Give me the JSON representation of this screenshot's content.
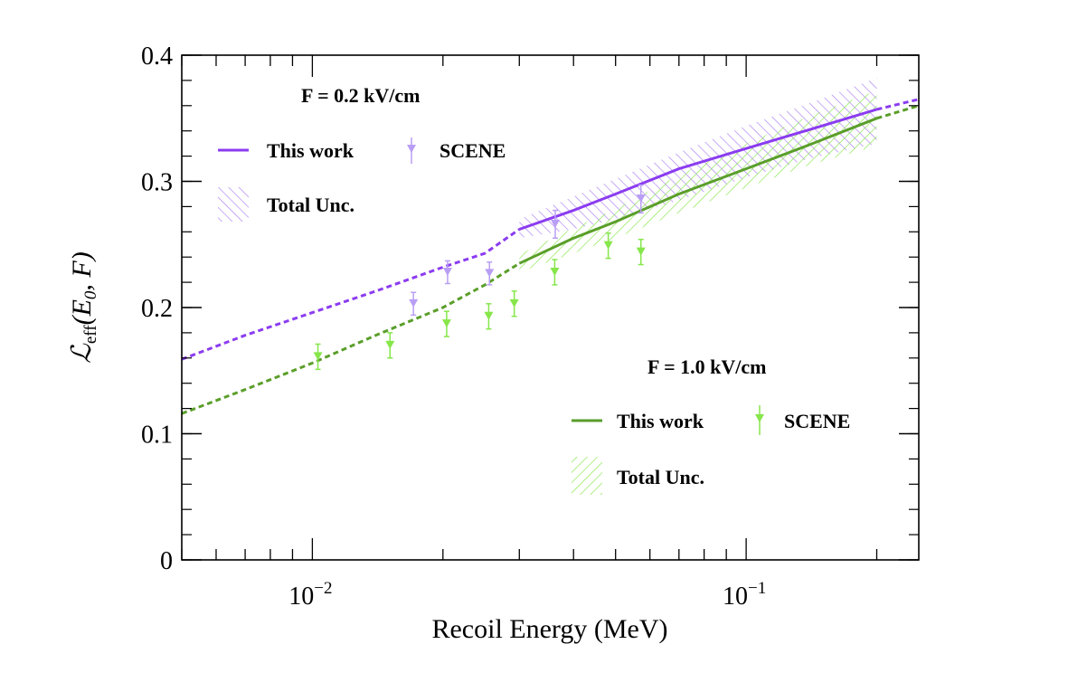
{
  "chart_data": {
    "type": "line",
    "xlabel": "Recoil Energy (MeV)",
    "ylabel": "ℒeff(E0, F)",
    "ylabel_parts": {
      "script_L": "ℒ",
      "sub": "eff",
      "args": "(E",
      "sub0": "0",
      "rest": ", F)"
    },
    "x_scale": "log",
    "xlim": [
      0.005,
      0.25
    ],
    "ylim": [
      0,
      0.4
    ],
    "x_ticks": [
      {
        "value": 0.01,
        "base": "10",
        "exp": "−2"
      },
      {
        "value": 0.1,
        "base": "10",
        "exp": "−1"
      }
    ],
    "y_ticks": [
      {
        "value": 0,
        "label": "0"
      },
      {
        "value": 0.1,
        "label": "0.1"
      },
      {
        "value": 0.2,
        "label": "0.2"
      },
      {
        "value": 0.3,
        "label": "0.3"
      },
      {
        "value": 0.4,
        "label": "0.4"
      }
    ],
    "legends": [
      {
        "title": "F = 0.2 kV/cm",
        "color": "#8b3cf0",
        "line_label": "This work",
        "marker_label": "SCENE",
        "band_label": "Total Unc."
      },
      {
        "title": "F = 1.0 kV/cm",
        "color": "#5a9e2a",
        "line_label": "This work",
        "marker_label": "SCENE",
        "band_label": "Total Unc."
      }
    ],
    "series": [
      {
        "field": "0.2 kV/cm",
        "model_color": "#8b3cf0",
        "scene_color": "#b99ef5",
        "band_color": "#a97ff2",
        "model_extrapolated": [
          [
            0.005,
            0.159
          ],
          [
            0.007,
            0.178
          ],
          [
            0.01,
            0.196
          ],
          [
            0.014,
            0.213
          ],
          [
            0.02,
            0.232
          ],
          [
            0.025,
            0.243
          ],
          [
            0.03,
            0.262
          ]
        ],
        "model_solid": [
          [
            0.03,
            0.262
          ],
          [
            0.04,
            0.277
          ],
          [
            0.05,
            0.29
          ],
          [
            0.07,
            0.31
          ],
          [
            0.1,
            0.326
          ],
          [
            0.14,
            0.341
          ],
          [
            0.2,
            0.357
          ]
        ],
        "model_tail": [
          [
            0.2,
            0.357
          ],
          [
            0.25,
            0.365
          ]
        ],
        "band": {
          "x": [
            0.03,
            0.04,
            0.05,
            0.07,
            0.1,
            0.14,
            0.2
          ],
          "lo": [
            0.255,
            0.262,
            0.27,
            0.285,
            0.303,
            0.318,
            0.33
          ],
          "hi": [
            0.27,
            0.288,
            0.302,
            0.323,
            0.344,
            0.362,
            0.382
          ]
        },
        "scene_points": [
          {
            "x": 0.0171,
            "y": 0.203,
            "err": 0.009
          },
          {
            "x": 0.0205,
            "y": 0.228,
            "err": 0.009
          },
          {
            "x": 0.0256,
            "y": 0.227,
            "err": 0.009
          },
          {
            "x": 0.0363,
            "y": 0.266,
            "err": 0.011
          },
          {
            "x": 0.0572,
            "y": 0.286,
            "err": 0.011
          }
        ]
      },
      {
        "field": "1.0 kV/cm",
        "model_color": "#5a9e2a",
        "scene_color": "#86e64a",
        "band_color": "#86e64a",
        "model_extrapolated": [
          [
            0.005,
            0.116
          ],
          [
            0.007,
            0.135
          ],
          [
            0.01,
            0.156
          ],
          [
            0.014,
            0.178
          ],
          [
            0.02,
            0.2
          ],
          [
            0.025,
            0.218
          ],
          [
            0.03,
            0.235
          ]
        ],
        "model_solid": [
          [
            0.03,
            0.235
          ],
          [
            0.04,
            0.255
          ],
          [
            0.05,
            0.268
          ],
          [
            0.07,
            0.29
          ],
          [
            0.1,
            0.31
          ],
          [
            0.14,
            0.329
          ],
          [
            0.2,
            0.35
          ]
        ],
        "model_tail": [
          [
            0.2,
            0.35
          ],
          [
            0.25,
            0.36
          ]
        ],
        "band": {
          "x": [
            0.03,
            0.04,
            0.05,
            0.07,
            0.1,
            0.14,
            0.2
          ],
          "lo": [
            0.228,
            0.243,
            0.255,
            0.275,
            0.295,
            0.313,
            0.328
          ],
          "hi": [
            0.242,
            0.263,
            0.278,
            0.305,
            0.33,
            0.352,
            0.372
          ]
        },
        "scene_points": [
          {
            "x": 0.0103,
            "y": 0.161,
            "err": 0.01
          },
          {
            "x": 0.0151,
            "y": 0.17,
            "err": 0.01
          },
          {
            "x": 0.0204,
            "y": 0.187,
            "err": 0.01
          },
          {
            "x": 0.0255,
            "y": 0.193,
            "err": 0.01
          },
          {
            "x": 0.0292,
            "y": 0.203,
            "err": 0.01
          },
          {
            "x": 0.0362,
            "y": 0.228,
            "err": 0.01
          },
          {
            "x": 0.0481,
            "y": 0.249,
            "err": 0.01
          },
          {
            "x": 0.0572,
            "y": 0.244,
            "err": 0.01
          }
        ]
      }
    ]
  }
}
